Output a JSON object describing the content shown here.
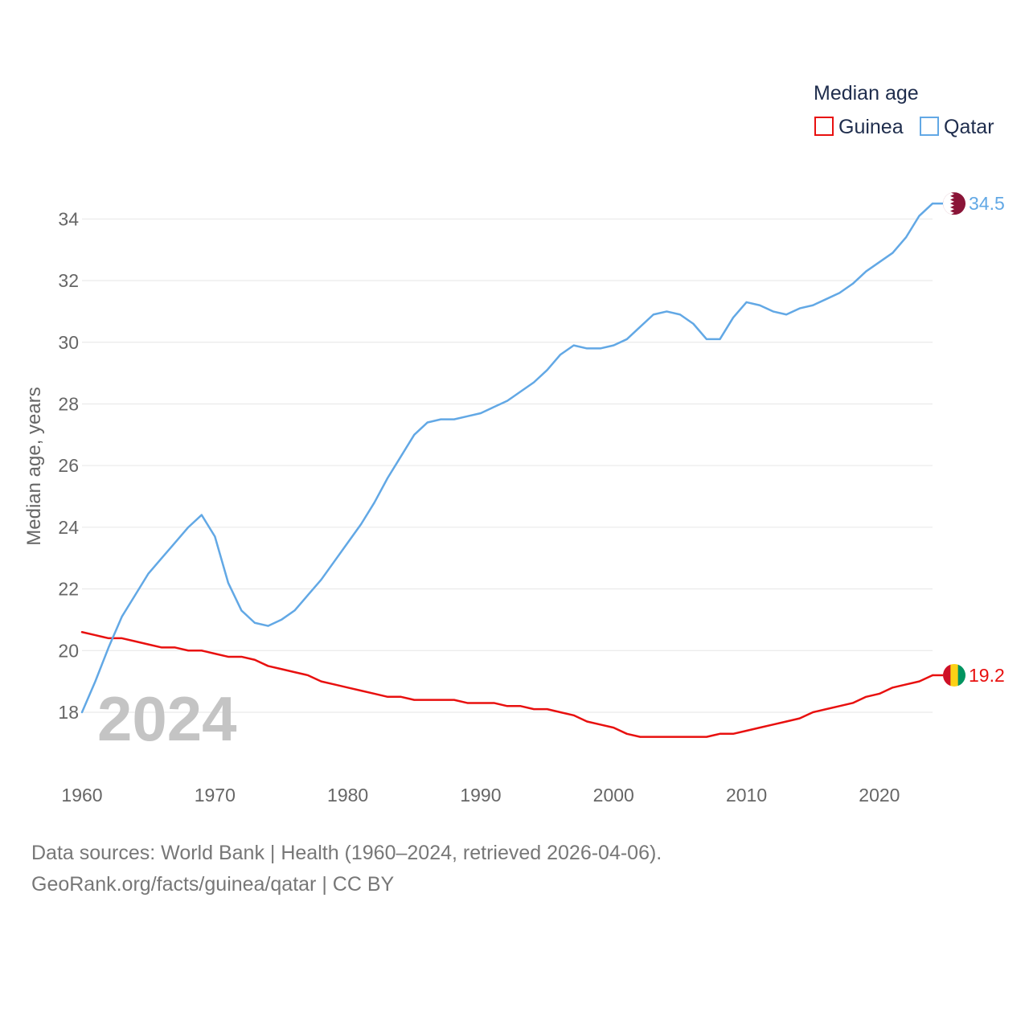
{
  "colors": {
    "guinea": "#e8100f",
    "qatar": "#62a8e5",
    "grid": "#e6e6e6",
    "qatar_flag": "#8a1538",
    "guinea_flag_red": "#ce1126",
    "guinea_flag_yellow": "#fcd116",
    "guinea_flag_green": "#009460"
  },
  "icons": {
    "qatar_marker": "qatar-flag-icon",
    "guinea_marker": "guinea-flag-icon"
  },
  "year_label": "2024",
  "source": {
    "line1": "Data sources: World Bank | Health (1960–2024, retrieved 2026-04-06).",
    "line2": "GeoRank.org/facts/guinea/qatar | CC BY"
  },
  "chart_data": {
    "type": "line",
    "title": "",
    "legend_title": "Median age",
    "legend_position": "top-right",
    "xlabel": "",
    "ylabel": "Median age, years",
    "xlim": [
      1960,
      2024
    ],
    "ylim": [
      16.2,
      35.6
    ],
    "grid": true,
    "xticks": [
      1960,
      1970,
      1980,
      1990,
      2000,
      2010,
      2020
    ],
    "yticks": [
      18,
      20,
      22,
      24,
      26,
      28,
      30,
      32,
      34
    ],
    "x": [
      1960,
      1961,
      1962,
      1963,
      1964,
      1965,
      1966,
      1967,
      1968,
      1969,
      1970,
      1971,
      1972,
      1973,
      1974,
      1975,
      1976,
      1977,
      1978,
      1979,
      1980,
      1981,
      1982,
      1983,
      1984,
      1985,
      1986,
      1987,
      1988,
      1989,
      1990,
      1991,
      1992,
      1993,
      1994,
      1995,
      1996,
      1997,
      1998,
      1999,
      2000,
      2001,
      2002,
      2003,
      2004,
      2005,
      2006,
      2007,
      2008,
      2009,
      2010,
      2011,
      2012,
      2013,
      2014,
      2015,
      2016,
      2017,
      2018,
      2019,
      2020,
      2021,
      2022,
      2023,
      2024
    ],
    "series": [
      {
        "name": "Guinea",
        "end_label": "19.2",
        "values": [
          20.6,
          20.5,
          20.4,
          20.4,
          20.3,
          20.2,
          20.1,
          20.1,
          20.0,
          20.0,
          19.9,
          19.8,
          19.8,
          19.7,
          19.5,
          19.4,
          19.3,
          19.2,
          19.0,
          18.9,
          18.8,
          18.7,
          18.6,
          18.5,
          18.5,
          18.4,
          18.4,
          18.4,
          18.4,
          18.3,
          18.3,
          18.3,
          18.2,
          18.2,
          18.1,
          18.1,
          18.0,
          17.9,
          17.7,
          17.6,
          17.5,
          17.3,
          17.2,
          17.2,
          17.2,
          17.2,
          17.2,
          17.2,
          17.3,
          17.3,
          17.4,
          17.5,
          17.6,
          17.7,
          17.8,
          18.0,
          18.1,
          18.2,
          18.3,
          18.5,
          18.6,
          18.8,
          18.9,
          19.0,
          19.2
        ]
      },
      {
        "name": "Qatar",
        "end_label": "34.5",
        "values": [
          18.0,
          19.0,
          20.1,
          21.1,
          21.8,
          22.5,
          23.0,
          23.5,
          24.0,
          24.4,
          23.7,
          22.2,
          21.3,
          20.9,
          20.8,
          21.0,
          21.3,
          21.8,
          22.3,
          22.9,
          23.5,
          24.1,
          24.8,
          25.6,
          26.3,
          27.0,
          27.4,
          27.5,
          27.5,
          27.6,
          27.7,
          27.9,
          28.1,
          28.4,
          28.7,
          29.1,
          29.6,
          29.9,
          29.8,
          29.8,
          29.9,
          30.1,
          30.5,
          30.9,
          31.0,
          30.9,
          30.6,
          30.1,
          30.1,
          30.8,
          31.3,
          31.2,
          31.0,
          30.9,
          31.1,
          31.2,
          31.4,
          31.6,
          31.9,
          32.3,
          32.6,
          32.9,
          33.4,
          34.1,
          34.5
        ]
      }
    ]
  }
}
